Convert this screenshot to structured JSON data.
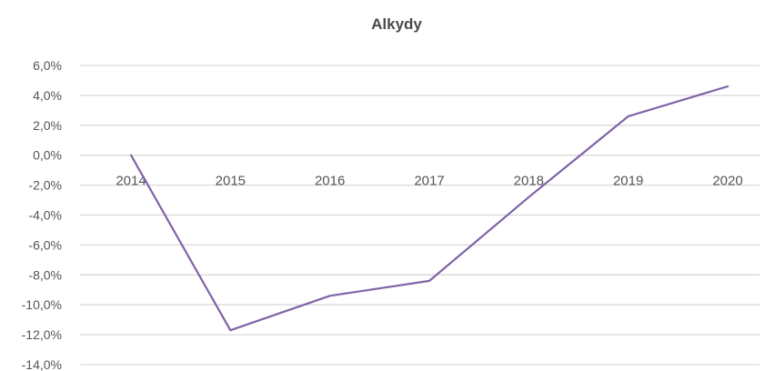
{
  "chart_data": {
    "type": "line",
    "title": "Alkydy",
    "xlabel": "",
    "ylabel": "",
    "categories": [
      "2014",
      "2015",
      "2016",
      "2017",
      "2018",
      "2019",
      "2020"
    ],
    "series": [
      {
        "values": [
          0.0,
          -11.7,
          -9.4,
          -8.4,
          -2.8,
          2.6,
          4.6
        ]
      }
    ],
    "ylim": [
      -14,
      6
    ],
    "y_ticks": [
      6,
      4,
      2,
      0,
      -2,
      -4,
      -6,
      -8,
      -10,
      -12,
      -14
    ],
    "y_tick_labels": [
      "6,0%",
      "4,0%",
      "2,0%",
      "0,0%",
      "-2,0%",
      "-4,0%",
      "-6,0%",
      "-8,0%",
      "-10,0%",
      "-12,0%",
      "-14,0%"
    ],
    "x_labels_position": "at zero line",
    "grid": true,
    "legend": "none",
    "colors": {
      "series": "#7f63a8",
      "grid": "#d9d9d9",
      "text": "#555555",
      "title": "#4a4a4a"
    }
  }
}
